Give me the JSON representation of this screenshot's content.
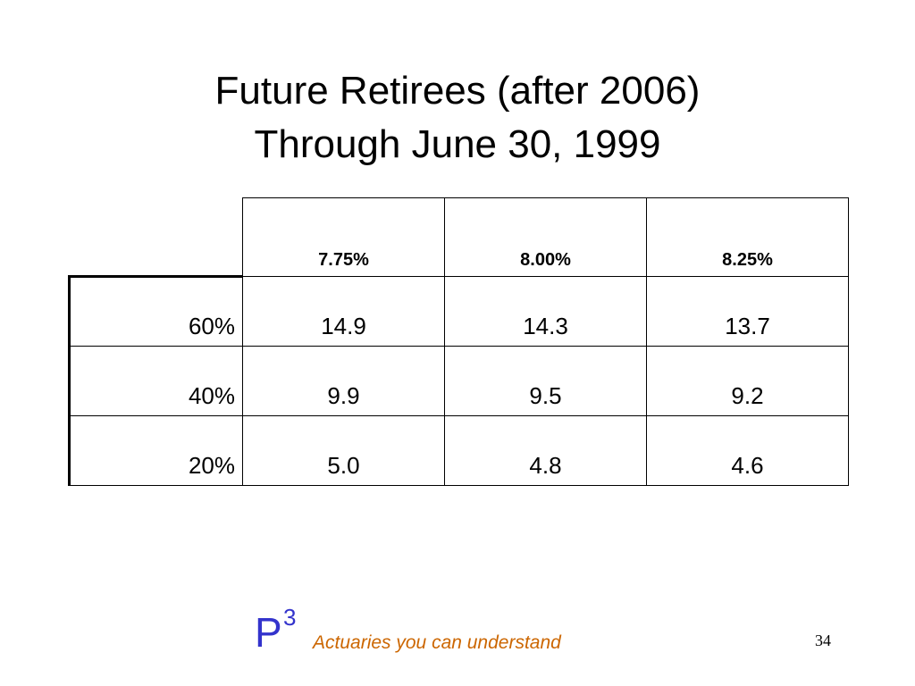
{
  "slide": {
    "title_line1": "Future Retirees (after 2006)",
    "title_line2": "Through June 30, 1999",
    "page_number": "34"
  },
  "table": {
    "columns": [
      "7.75%",
      "8.00%",
      "8.25%"
    ],
    "rows": [
      {
        "label": "60%",
        "values": [
          "14.9",
          "14.3",
          "13.7"
        ]
      },
      {
        "label": "40%",
        "values": [
          "9.9",
          "9.5",
          "9.2"
        ]
      },
      {
        "label": "20%",
        "values": [
          "5.0",
          "4.8",
          "4.6"
        ]
      }
    ]
  },
  "footer": {
    "logo_letter": "P",
    "logo_superscript": "3",
    "tagline": "Actuaries you can understand",
    "logo_color": "#3333cc",
    "tagline_color": "#cc6600"
  }
}
